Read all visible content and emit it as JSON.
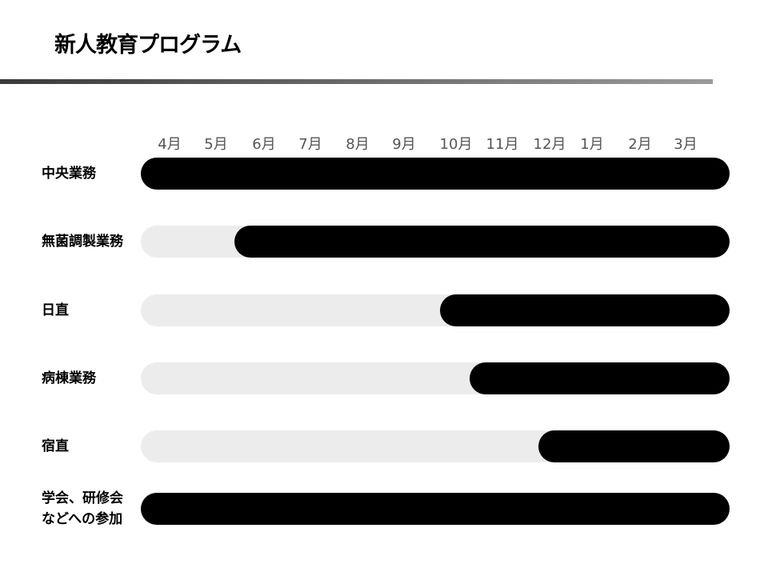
{
  "title": "新人教育プログラム",
  "chart_data": {
    "type": "gantt",
    "title": "新人教育プログラム",
    "categories_axis": [
      "4月",
      "5月",
      "6月",
      "7月",
      "8月",
      "9月",
      "10月",
      "11月",
      "12月",
      "1月",
      "2月",
      "3月"
    ],
    "xlim_months_from_april": [
      0,
      12
    ],
    "colors": {
      "active": "#000000",
      "inactive": "#ececec"
    },
    "rows": [
      {
        "label": "中央業務",
        "start": 0,
        "end": 12
      },
      {
        "label": "無菌調製業務",
        "start": 1.9,
        "end": 12
      },
      {
        "label": "日直",
        "start": 6.1,
        "end": 12
      },
      {
        "label": "病棟業務",
        "start": 6.7,
        "end": 12
      },
      {
        "label": "宿直",
        "start": 8.1,
        "end": 12
      },
      {
        "label": "学会、研修会\nなどへの参加",
        "start": 0,
        "end": 12
      }
    ]
  }
}
